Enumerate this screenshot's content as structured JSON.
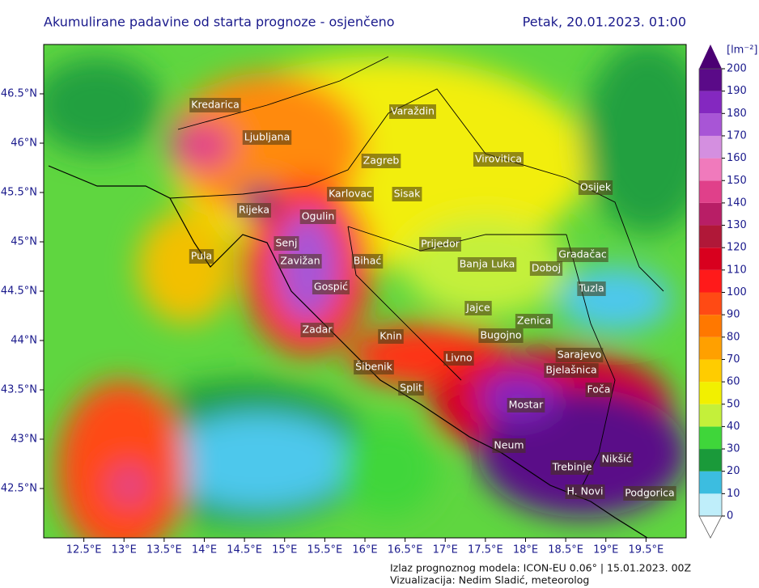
{
  "header": {
    "title": "Akumulirane padavine od starta prognoze - osjenčeno",
    "date": "Petak, 20.01.2023. 01:00"
  },
  "map": {
    "xlim": [
      12,
      20
    ],
    "ylim": [
      42,
      47
    ],
    "xticks": [
      {
        "value": 12.5,
        "label": "12.5°E"
      },
      {
        "value": 13,
        "label": "13°E"
      },
      {
        "value": 13.5,
        "label": "13.5°E"
      },
      {
        "value": 14,
        "label": "14°E"
      },
      {
        "value": 14.5,
        "label": "14.5°E"
      },
      {
        "value": 15,
        "label": "15°E"
      },
      {
        "value": 15.5,
        "label": "15.5°E"
      },
      {
        "value": 16,
        "label": "16°E"
      },
      {
        "value": 16.5,
        "label": "16.5°E"
      },
      {
        "value": 17,
        "label": "17°E"
      },
      {
        "value": 17.5,
        "label": "17.5°E"
      },
      {
        "value": 18,
        "label": "18°E"
      },
      {
        "value": 18.5,
        "label": "18.5°E"
      },
      {
        "value": 19,
        "label": "19°E"
      },
      {
        "value": 19.5,
        "label": "19.5°E"
      }
    ],
    "yticks": [
      {
        "value": 42.5,
        "label": "42.5°N"
      },
      {
        "value": 43,
        "label": "43°N"
      },
      {
        "value": 43.5,
        "label": "43.5°N"
      },
      {
        "value": 44,
        "label": "44°N"
      },
      {
        "value": 44.5,
        "label": "44.5°N"
      },
      {
        "value": 45,
        "label": "45°N"
      },
      {
        "value": 45.5,
        "label": "45.5°N"
      },
      {
        "value": 46,
        "label": "46°N"
      },
      {
        "value": 46.5,
        "label": "46.5°N"
      }
    ],
    "cities": [
      "Kredarica",
      "Ljubljana",
      "Varaždin",
      "Zagreb",
      "Virovitica",
      "Karlovac",
      "Sisak",
      "Osijek",
      "Rijeka",
      "Ogulin",
      "Senj",
      "Prijedor",
      "Pula",
      "Zavižan",
      "Bihać",
      "Banja Luka",
      "Doboj",
      "Gradačac",
      "Gospić",
      "Tuzla",
      "Jajce",
      "Zenica",
      "Zadar",
      "Knin",
      "Bugojno",
      "Livno",
      "Sarajevo",
      "Šibenik",
      "Bjelašnica",
      "Split",
      "Foča",
      "Mostar",
      "Neum",
      "Nikšić",
      "Trebinje",
      "H. Novi",
      "Podgorica"
    ]
  },
  "colorbar": {
    "label": "[lm⁻²]",
    "lim": [
      0,
      200
    ],
    "ticks": [
      0,
      10,
      20,
      30,
      40,
      50,
      60,
      70,
      80,
      90,
      100,
      110,
      120,
      130,
      140,
      150,
      160,
      170,
      180,
      190,
      200
    ],
    "colors": [
      "#bfeefa",
      "#3cbde0",
      "#1a9a3a",
      "#3fd63a",
      "#c4f03a",
      "#f2f000",
      "#ffcc00",
      "#ffa000",
      "#ff7800",
      "#ff4a14",
      "#ff1a1a",
      "#d8001e",
      "#b01838",
      "#b81e66",
      "#e0408a",
      "#f07abc",
      "#d48fe0",
      "#a855d6",
      "#8428c0",
      "#5a0a88"
    ]
  },
  "footer": {
    "line1": "Izlaz prognoznog modela: ICON-EU 0.06° | 15.01.2023. 00Z",
    "line2": "Vizualizacija: Nedim Sladić, meteorolog"
  }
}
